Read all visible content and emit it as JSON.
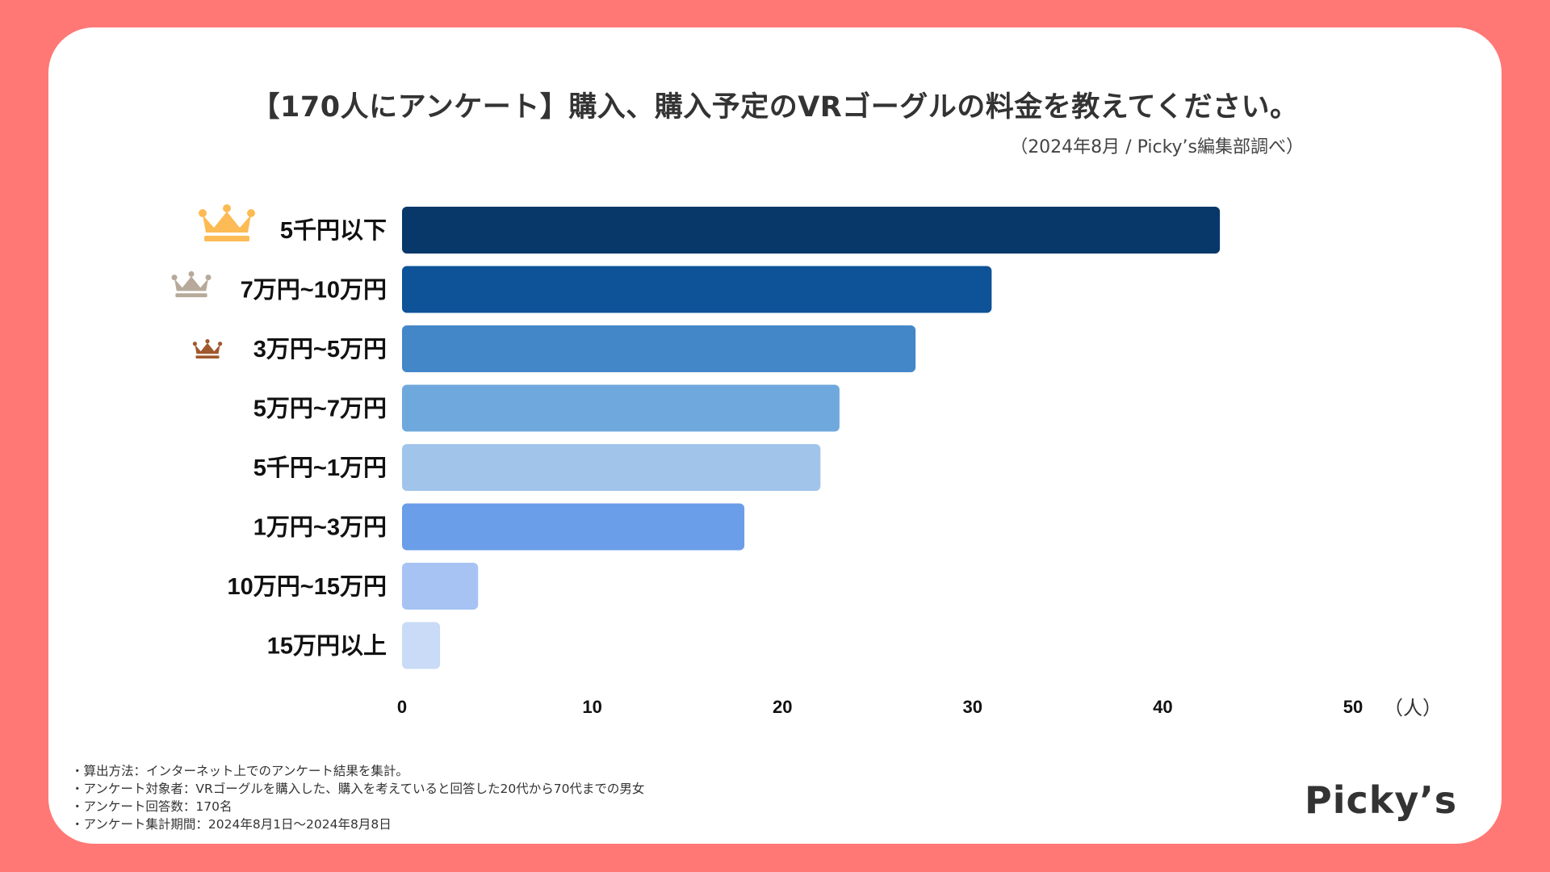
{
  "header": {
    "title": "【170人にアンケート】購入、購入予定のVRゴーグルの料金を教えてください。",
    "subtitle": "（2024年8月 / Picky’s編集部調べ）"
  },
  "chart_data": {
    "type": "bar",
    "orientation": "horizontal",
    "title": "【170人にアンケート】購入、購入予定のVRゴーグルの料金を教えてください。",
    "subtitle": "（2024年8月 / Picky’s編集部調べ）",
    "categories": [
      "5千円以下",
      "7万円~10万円",
      "3万円~5万円",
      "5万円~7万円",
      "5千円~1万円",
      "1万円~3万円",
      "10万円~15万円",
      "15万円以上"
    ],
    "values": [
      43,
      31,
      27,
      23,
      22,
      18,
      4,
      2
    ],
    "colors": [
      "#08376a",
      "#0e5297",
      "#4387c8",
      "#6fa8dd",
      "#a1c5ea",
      "#6b9ee8",
      "#a6c3f3",
      "#c9dbf6"
    ],
    "rank_icons": [
      "crown-gold",
      "crown-silver",
      "crown-bronze",
      null,
      null,
      null,
      null,
      null
    ],
    "rank_colors": {
      "gold": "#fdbb55",
      "silver": "#b7aa9b",
      "bronze": "#a0582d"
    },
    "xlabel": "（人）",
    "ylabel": "",
    "xlim": [
      0,
      50
    ],
    "xticks": [
      0,
      10,
      20,
      30,
      40,
      50
    ],
    "xtick_labels": [
      "0",
      "10",
      "20",
      "30",
      "40",
      "50"
    ],
    "grid": false,
    "legend": "none"
  },
  "notes": [
    "・算出方法：インターネット上でのアンケート結果を集計。",
    "・アンケート対象者：VRゴーグルを購入した、購入を考えていると回答した20代から70代までの男女",
    "・アンケート回答数：170名",
    "・アンケート集計期間：2024年8月1日〜2024年8月8日"
  ],
  "logo": "Picky’s",
  "theme": {
    "frame": "#ff7875",
    "card": "#ffffff"
  }
}
